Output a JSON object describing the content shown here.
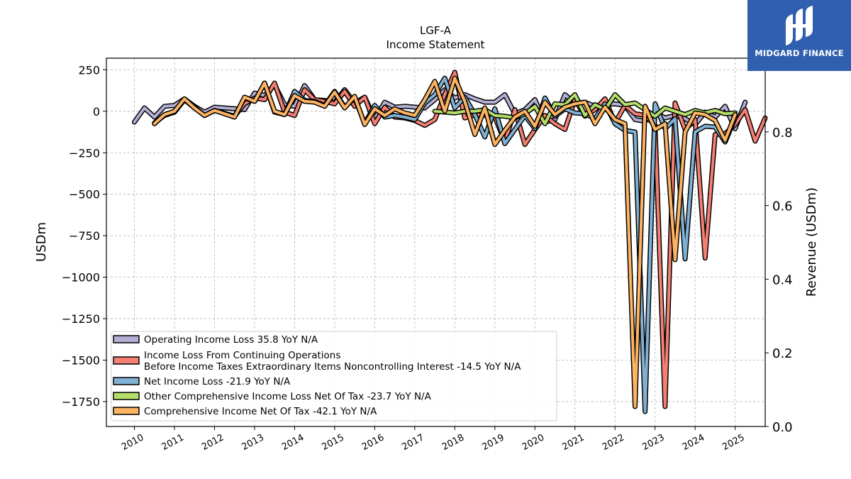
{
  "header": {
    "ticker": "LGF-A",
    "subtitle": "Income Statement"
  },
  "brand": {
    "name": "MIDGARD FINANCE",
    "logo_icon": "midgard-logo-icon",
    "color": "#2f5fae"
  },
  "chart_data": {
    "type": "line",
    "title": "LGF-A",
    "subtitle": "Income Statement",
    "ylabel": "USDm",
    "y2label": "Revenue (USDm)",
    "ylim": [
      -1900,
      320
    ],
    "y2lim": [
      0,
      1.0
    ],
    "yticks": [
      250,
      0,
      -250,
      -500,
      -750,
      -1000,
      -1250,
      -1500,
      -1750
    ],
    "ytick_labels": [
      "250",
      "0",
      "−250",
      "−500",
      "−750",
      "−1000",
      "−1250",
      "−1500",
      "−1750"
    ],
    "y2ticks": [
      0.0,
      0.2,
      0.4,
      0.6,
      0.8
    ],
    "y2tick_labels": [
      "0.0",
      "0.2",
      "0.4",
      "0.6",
      "0.8"
    ],
    "xlim": [
      2009.3,
      2025.75
    ],
    "xticks": [
      2010,
      2011,
      2012,
      2013,
      2014,
      2015,
      2016,
      2017,
      2018,
      2019,
      2020,
      2021,
      2022,
      2023,
      2024,
      2025
    ],
    "xtick_labels": [
      "2010",
      "2011",
      "2012",
      "2013",
      "2014",
      "2015",
      "2016",
      "2017",
      "2018",
      "2019",
      "2020",
      "2021",
      "2022",
      "2023",
      "2024",
      "2025"
    ],
    "grid": true,
    "legend_position": "lower-left",
    "series": [
      {
        "label": "Operating Income Loss  35.8 YoY N/A",
        "color": "#b3afd4",
        "points": [
          [
            2010.0,
            -65
          ],
          [
            2010.25,
            20
          ],
          [
            2010.5,
            -35
          ],
          [
            2010.75,
            30
          ],
          [
            2011.0,
            35
          ],
          [
            2011.25,
            75
          ],
          [
            2011.5,
            30
          ],
          [
            2011.75,
            -5
          ],
          [
            2012.0,
            25
          ],
          [
            2012.5,
            15
          ],
          [
            2012.75,
            10
          ],
          [
            2013.0,
            110
          ],
          [
            2013.25,
            95
          ],
          [
            2013.5,
            160
          ],
          [
            2013.75,
            40
          ],
          [
            2014.0,
            30
          ],
          [
            2014.25,
            155
          ],
          [
            2014.5,
            70
          ],
          [
            2014.75,
            65
          ],
          [
            2015.0,
            55
          ],
          [
            2015.25,
            130
          ],
          [
            2015.5,
            50
          ],
          [
            2015.75,
            85
          ],
          [
            2016.0,
            -45
          ],
          [
            2016.25,
            55
          ],
          [
            2016.5,
            25
          ],
          [
            2016.75,
            30
          ],
          [
            2017.0,
            25
          ],
          [
            2017.25,
            20
          ],
          [
            2017.5,
            70
          ],
          [
            2017.75,
            130
          ],
          [
            2018.0,
            80
          ],
          [
            2018.25,
            100
          ],
          [
            2018.5,
            75
          ],
          [
            2018.75,
            55
          ],
          [
            2019.0,
            55
          ],
          [
            2019.25,
            100
          ],
          [
            2019.5,
            -15
          ],
          [
            2019.75,
            10
          ],
          [
            2020.0,
            70
          ],
          [
            2020.25,
            -65
          ],
          [
            2020.5,
            -50
          ],
          [
            2020.75,
            100
          ],
          [
            2021.0,
            50
          ],
          [
            2021.25,
            55
          ],
          [
            2021.5,
            30
          ],
          [
            2021.75,
            40
          ],
          [
            2022.0,
            45
          ],
          [
            2022.25,
            35
          ],
          [
            2022.5,
            -50
          ],
          [
            2022.75,
            -60
          ],
          [
            2023.0,
            -5
          ],
          [
            2023.25,
            -40
          ],
          [
            2023.5,
            -25
          ],
          [
            2023.75,
            -45
          ],
          [
            2024.0,
            -80
          ],
          [
            2024.25,
            -5
          ],
          [
            2024.5,
            -35
          ],
          [
            2024.75,
            30
          ],
          [
            2025.0,
            -105
          ],
          [
            2025.25,
            55
          ]
        ]
      },
      {
        "label": "Income Loss From Continuing Operations\nBefore Income Taxes Extraordinary Items Noncontrolling Interest  -14.5 YoY N/A",
        "color": "#f47f72",
        "points": [
          [
            2010.5,
            -70
          ],
          [
            2010.75,
            -25
          ],
          [
            2011.0,
            -5
          ],
          [
            2011.25,
            70
          ],
          [
            2011.5,
            20
          ],
          [
            2011.75,
            -25
          ],
          [
            2012.0,
            5
          ],
          [
            2012.5,
            -30
          ],
          [
            2012.75,
            45
          ],
          [
            2013.0,
            80
          ],
          [
            2013.25,
            70
          ],
          [
            2013.5,
            170
          ],
          [
            2013.75,
            -5
          ],
          [
            2014.0,
            -25
          ],
          [
            2014.25,
            130
          ],
          [
            2014.5,
            70
          ],
          [
            2014.75,
            60
          ],
          [
            2015.0,
            45
          ],
          [
            2015.25,
            120
          ],
          [
            2015.5,
            30
          ],
          [
            2015.75,
            85
          ],
          [
            2016.0,
            -75
          ],
          [
            2016.25,
            25
          ],
          [
            2016.5,
            -35
          ],
          [
            2016.75,
            -40
          ],
          [
            2017.0,
            -55
          ],
          [
            2017.25,
            -85
          ],
          [
            2017.5,
            -50
          ],
          [
            2017.75,
            100
          ],
          [
            2018.0,
            235
          ],
          [
            2018.25,
            -40
          ],
          [
            2018.5,
            -20
          ],
          [
            2018.75,
            -25
          ],
          [
            2019.0,
            -35
          ],
          [
            2019.25,
            -185
          ],
          [
            2019.5,
            10
          ],
          [
            2019.75,
            -200
          ],
          [
            2020.0,
            -110
          ],
          [
            2020.25,
            -25
          ],
          [
            2020.5,
            -75
          ],
          [
            2020.75,
            -110
          ],
          [
            2021.0,
            70
          ],
          [
            2021.25,
            -30
          ],
          [
            2021.5,
            10
          ],
          [
            2021.75,
            75
          ],
          [
            2022.0,
            -70
          ],
          [
            2022.25,
            35
          ],
          [
            2022.5,
            -15
          ],
          [
            2022.75,
            -25
          ],
          [
            2023.0,
            -85
          ],
          [
            2023.25,
            -1780
          ],
          [
            2023.5,
            50
          ],
          [
            2023.75,
            -110
          ],
          [
            2024.0,
            -50
          ],
          [
            2024.25,
            -885
          ],
          [
            2024.5,
            -140
          ],
          [
            2024.75,
            -135
          ],
          [
            2025.0,
            -80
          ],
          [
            2025.25,
            10
          ],
          [
            2025.5,
            -180
          ],
          [
            2025.75,
            -40
          ]
        ]
      },
      {
        "label": "Net Income Loss  -21.9 YoY N/A",
        "color": "#80b1d3",
        "points": [
          [
            2010.5,
            -75
          ],
          [
            2010.75,
            -20
          ],
          [
            2011.0,
            -5
          ],
          [
            2011.25,
            70
          ],
          [
            2011.5,
            25
          ],
          [
            2011.75,
            -25
          ],
          [
            2012.0,
            5
          ],
          [
            2012.5,
            -30
          ],
          [
            2012.75,
            80
          ],
          [
            2013.0,
            60
          ],
          [
            2013.25,
            170
          ],
          [
            2013.5,
            -5
          ],
          [
            2013.75,
            -20
          ],
          [
            2014.0,
            120
          ],
          [
            2014.25,
            65
          ],
          [
            2014.5,
            60
          ],
          [
            2014.75,
            35
          ],
          [
            2015.0,
            120
          ],
          [
            2015.25,
            25
          ],
          [
            2015.5,
            80
          ],
          [
            2015.75,
            -75
          ],
          [
            2016.0,
            35
          ],
          [
            2016.25,
            -35
          ],
          [
            2016.5,
            -25
          ],
          [
            2016.75,
            -35
          ],
          [
            2017.0,
            -50
          ],
          [
            2017.25,
            50
          ],
          [
            2017.5,
            100
          ],
          [
            2017.75,
            200
          ],
          [
            2018.0,
            20
          ],
          [
            2018.25,
            85
          ],
          [
            2018.5,
            -20
          ],
          [
            2018.75,
            -155
          ],
          [
            2019.0,
            15
          ],
          [
            2019.25,
            -195
          ],
          [
            2019.5,
            -110
          ],
          [
            2019.75,
            -25
          ],
          [
            2020.0,
            -105
          ],
          [
            2020.25,
            80
          ],
          [
            2020.5,
            -30
          ],
          [
            2020.75,
            15
          ],
          [
            2021.0,
            -10
          ],
          [
            2021.25,
            -15
          ],
          [
            2021.5,
            -45
          ],
          [
            2021.75,
            45
          ],
          [
            2022.0,
            -75
          ],
          [
            2022.25,
            -115
          ],
          [
            2022.5,
            -125
          ],
          [
            2022.75,
            -1810
          ],
          [
            2023.0,
            45
          ],
          [
            2023.25,
            -105
          ],
          [
            2023.5,
            -45
          ],
          [
            2023.75,
            -890
          ],
          [
            2024.0,
            -125
          ],
          [
            2024.25,
            -90
          ],
          [
            2024.5,
            -95
          ],
          [
            2024.75,
            -185
          ],
          [
            2025.0,
            -40
          ]
        ]
      },
      {
        "label": "Other Comprehensive Income Loss Net Of Tax  -23.7 YoY N/A",
        "color": "#b3de69",
        "points": [
          [
            2017.5,
            0
          ],
          [
            2017.75,
            -5
          ],
          [
            2018.0,
            -10
          ],
          [
            2018.25,
            0
          ],
          [
            2018.5,
            0
          ],
          [
            2018.75,
            10
          ],
          [
            2019.0,
            -25
          ],
          [
            2019.25,
            -30
          ],
          [
            2019.5,
            -40
          ],
          [
            2019.75,
            -15
          ],
          [
            2020.0,
            30
          ],
          [
            2020.25,
            -75
          ],
          [
            2020.5,
            45
          ],
          [
            2020.75,
            40
          ],
          [
            2021.0,
            100
          ],
          [
            2021.25,
            -25
          ],
          [
            2021.5,
            40
          ],
          [
            2021.75,
            10
          ],
          [
            2022.0,
            100
          ],
          [
            2022.25,
            40
          ],
          [
            2022.5,
            50
          ],
          [
            2022.75,
            10
          ],
          [
            2023.0,
            -30
          ],
          [
            2023.25,
            20
          ],
          [
            2023.5,
            0
          ],
          [
            2023.75,
            -20
          ],
          [
            2024.0,
            5
          ],
          [
            2024.25,
            -10
          ],
          [
            2024.5,
            5
          ],
          [
            2024.75,
            -15
          ],
          [
            2025.0,
            -10
          ]
        ]
      },
      {
        "label": "Comprehensive Income Net Of Tax  -42.1 YoY N/A",
        "color": "#fdb462",
        "points": [
          [
            2010.5,
            -75
          ],
          [
            2010.75,
            -20
          ],
          [
            2011.0,
            0
          ],
          [
            2011.25,
            75
          ],
          [
            2011.5,
            20
          ],
          [
            2011.75,
            -25
          ],
          [
            2012.0,
            5
          ],
          [
            2012.5,
            -35
          ],
          [
            2012.75,
            85
          ],
          [
            2013.0,
            60
          ],
          [
            2013.25,
            170
          ],
          [
            2013.5,
            0
          ],
          [
            2013.75,
            -20
          ],
          [
            2014.0,
            95
          ],
          [
            2014.25,
            60
          ],
          [
            2014.5,
            55
          ],
          [
            2014.75,
            30
          ],
          [
            2015.0,
            115
          ],
          [
            2015.25,
            20
          ],
          [
            2015.5,
            90
          ],
          [
            2015.75,
            -80
          ],
          [
            2016.0,
            15
          ],
          [
            2016.25,
            -25
          ],
          [
            2016.5,
            15
          ],
          [
            2016.75,
            -10
          ],
          [
            2017.0,
            -25
          ],
          [
            2017.25,
            70
          ],
          [
            2017.5,
            180
          ],
          [
            2017.75,
            0
          ],
          [
            2018.0,
            200
          ],
          [
            2018.25,
            60
          ],
          [
            2018.5,
            -140
          ],
          [
            2018.75,
            20
          ],
          [
            2019.0,
            -200
          ],
          [
            2019.25,
            -115
          ],
          [
            2019.5,
            -35
          ],
          [
            2019.75,
            0
          ],
          [
            2020.0,
            -90
          ],
          [
            2020.25,
            55
          ],
          [
            2020.5,
            -20
          ],
          [
            2020.75,
            25
          ],
          [
            2021.0,
            45
          ],
          [
            2021.25,
            55
          ],
          [
            2021.5,
            -75
          ],
          [
            2021.75,
            25
          ],
          [
            2022.0,
            -50
          ],
          [
            2022.25,
            -75
          ],
          [
            2022.5,
            -1780
          ],
          [
            2022.75,
            30
          ],
          [
            2023.0,
            -110
          ],
          [
            2023.25,
            -75
          ],
          [
            2023.5,
            -895
          ],
          [
            2023.75,
            -125
          ],
          [
            2024.0,
            -10
          ],
          [
            2024.25,
            -20
          ],
          [
            2024.5,
            -55
          ],
          [
            2024.75,
            -175
          ],
          [
            2025.0,
            -20
          ]
        ]
      }
    ]
  }
}
